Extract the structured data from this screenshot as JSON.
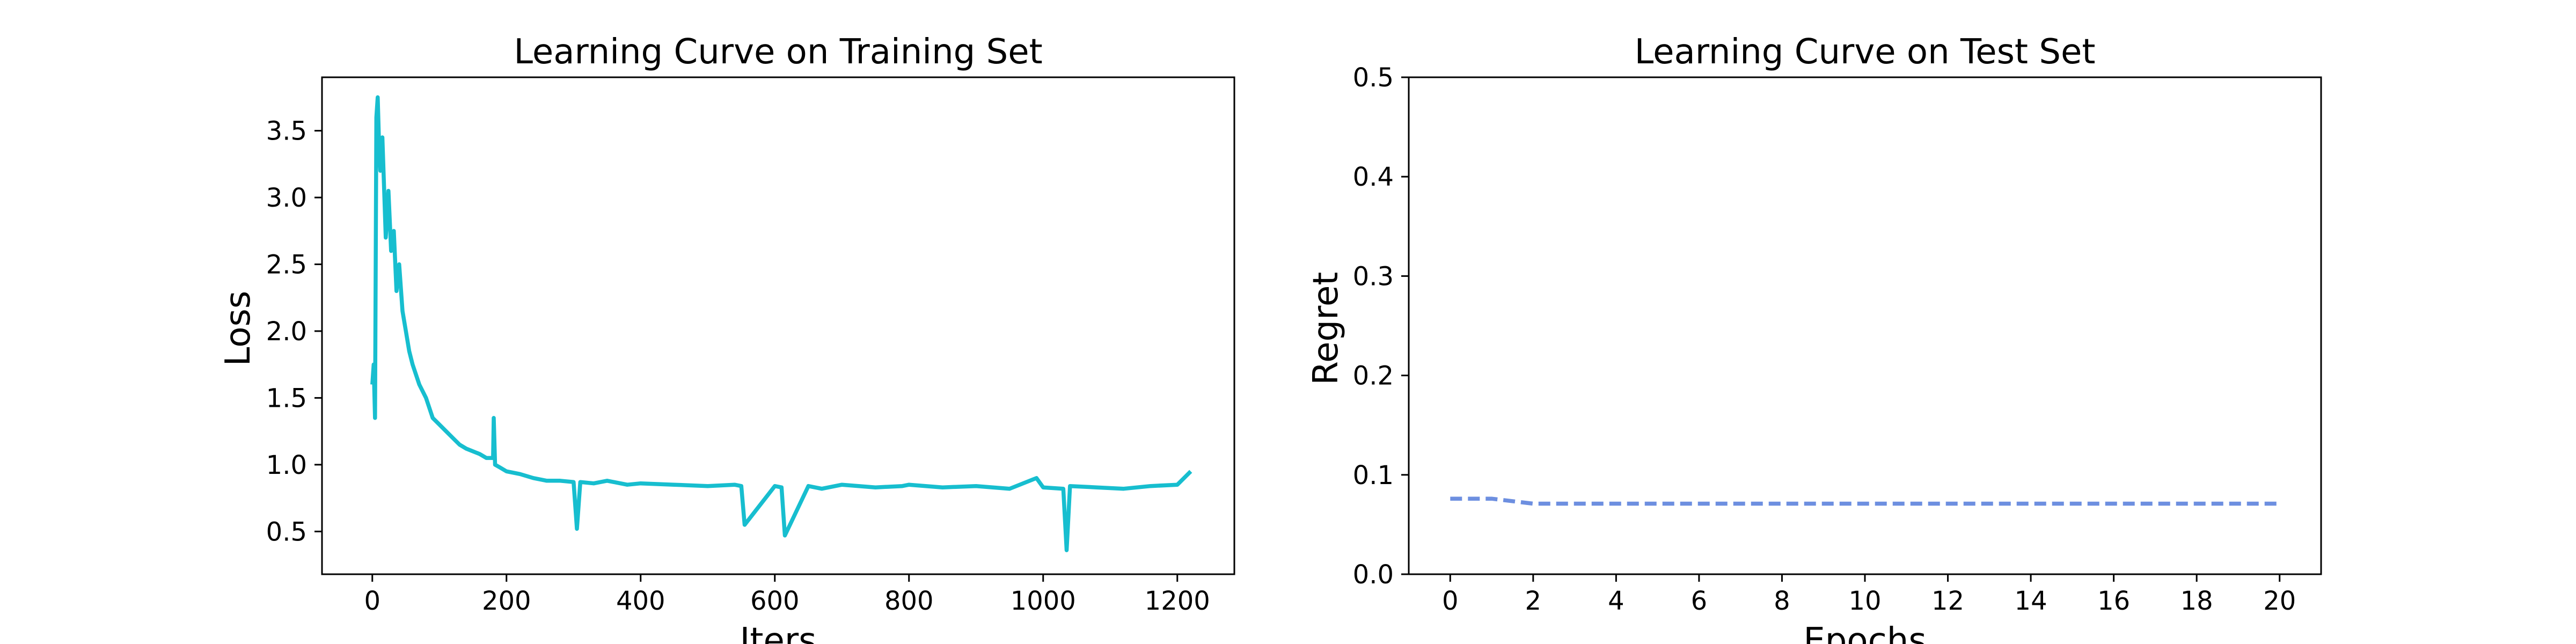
{
  "chart_data": [
    {
      "type": "line",
      "title": "Learning Curve on Training Set",
      "xlabel": "Iters",
      "ylabel": "Loss",
      "xlim": [
        -75,
        1285
      ],
      "ylim": [
        0.18,
        3.9
      ],
      "xticks": [
        0,
        200,
        400,
        600,
        800,
        1000,
        1200
      ],
      "xtick_labels": [
        "0",
        "200",
        "400",
        "600",
        "800",
        "1000",
        "1200"
      ],
      "yticks": [
        0.5,
        1.0,
        1.5,
        2.0,
        2.5,
        3.0,
        3.5
      ],
      "ytick_labels": [
        "0.5",
        "1.0",
        "1.5",
        "2.0",
        "2.5",
        "3.0",
        "3.5"
      ],
      "color": "#17becf",
      "linestyle": "solid",
      "grid": false,
      "series": [
        {
          "x": [
            0,
            2,
            4,
            6,
            8,
            10,
            12,
            15,
            18,
            20,
            24,
            28,
            32,
            36,
            40,
            45,
            50,
            55,
            60,
            70,
            80,
            90,
            100,
            110,
            120,
            130,
            140,
            150,
            160,
            170,
            180,
            181,
            183,
            190,
            200,
            220,
            240,
            260,
            280,
            300,
            305,
            310,
            330,
            350,
            380,
            400,
            450,
            500,
            540,
            550,
            555,
            600,
            610,
            615,
            650,
            670,
            700,
            750,
            790,
            800,
            850,
            900,
            950,
            990,
            1000,
            1030,
            1035,
            1040,
            1080,
            1120,
            1160,
            1200,
            1220
          ],
          "y": [
            1.6,
            1.75,
            1.35,
            3.6,
            3.75,
            3.4,
            3.2,
            3.45,
            3.0,
            2.7,
            3.05,
            2.6,
            2.75,
            2.3,
            2.5,
            2.15,
            2.0,
            1.85,
            1.75,
            1.6,
            1.5,
            1.35,
            1.3,
            1.25,
            1.2,
            1.15,
            1.12,
            1.1,
            1.08,
            1.05,
            1.05,
            1.35,
            1.0,
            0.98,
            0.95,
            0.93,
            0.9,
            0.88,
            0.88,
            0.87,
            0.52,
            0.87,
            0.86,
            0.88,
            0.85,
            0.86,
            0.85,
            0.84,
            0.85,
            0.84,
            0.55,
            0.84,
            0.83,
            0.47,
            0.84,
            0.82,
            0.85,
            0.83,
            0.84,
            0.85,
            0.83,
            0.84,
            0.82,
            0.9,
            0.83,
            0.82,
            0.36,
            0.84,
            0.83,
            0.82,
            0.84,
            0.85,
            0.95
          ]
        }
      ]
    },
    {
      "type": "line",
      "title": "Learning Curve on Test Set",
      "xlabel": "Epochs",
      "ylabel": "Regret",
      "xlim": [
        -1,
        21
      ],
      "ylim": [
        0.0,
        0.5
      ],
      "xticks": [
        0,
        2,
        4,
        6,
        8,
        10,
        12,
        14,
        16,
        18,
        20
      ],
      "xtick_labels": [
        "0",
        "2",
        "4",
        "6",
        "8",
        "10",
        "12",
        "14",
        "16",
        "18",
        "20"
      ],
      "yticks": [
        0.0,
        0.1,
        0.2,
        0.3,
        0.4,
        0.5
      ],
      "ytick_labels": [
        "0.0",
        "0.1",
        "0.2",
        "0.3",
        "0.4",
        "0.5"
      ],
      "color": "#6d8fe0",
      "linestyle": "dashed",
      "grid": false,
      "series": [
        {
          "x": [
            0,
            1,
            2,
            3,
            4,
            5,
            6,
            7,
            8,
            9,
            10,
            11,
            12,
            13,
            14,
            15,
            16,
            17,
            18,
            19,
            20
          ],
          "y": [
            0.076,
            0.076,
            0.071,
            0.071,
            0.071,
            0.071,
            0.071,
            0.071,
            0.071,
            0.071,
            0.071,
            0.071,
            0.071,
            0.071,
            0.071,
            0.071,
            0.071,
            0.071,
            0.071,
            0.071,
            0.071
          ]
        }
      ]
    }
  ]
}
